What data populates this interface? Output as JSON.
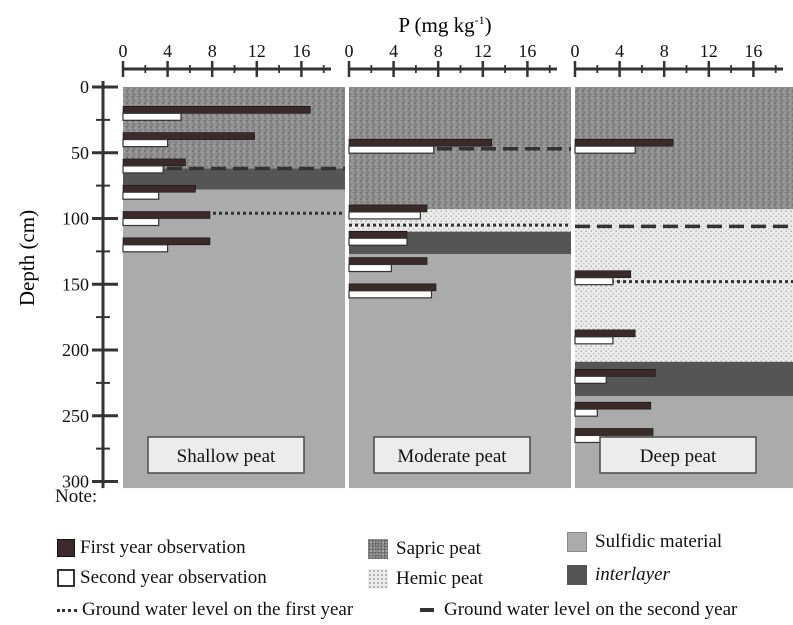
{
  "chart_data": {
    "type": "bar",
    "x_axis_title": "P (mg kg",
    "x_axis_unit_sup": "-1",
    "x_axis_title_close": ")",
    "x_ticks": [
      "0",
      "4",
      "8",
      "12",
      "16"
    ],
    "xlim": [
      0,
      20
    ],
    "y_axis_title": "Depth (cm)",
    "y_ticks": [
      "0",
      "50",
      "100",
      "150",
      "200",
      "250",
      "300"
    ],
    "ylim": [
      0,
      310
    ],
    "series_names": [
      "First year observation",
      "Second year observation"
    ],
    "panels": [
      {
        "label": "Shallow peat",
        "layers": [
          {
            "type": "sapric",
            "from": 0,
            "to": 62
          },
          {
            "type": "interlayer",
            "from": 62,
            "to": 78
          },
          {
            "type": "sulfidic",
            "from": 78,
            "to": 305
          }
        ],
        "gw_first_year": 96,
        "gw_second_year": 62,
        "observations": [
          {
            "depth": 20,
            "first": 16.8,
            "second": 5.2
          },
          {
            "depth": 40,
            "first": 11.8,
            "second": 4.0
          },
          {
            "depth": 60,
            "first": 5.6,
            "second": 3.6
          },
          {
            "depth": 80,
            "first": 6.5,
            "second": 3.2
          },
          {
            "depth": 100,
            "first": 7.8,
            "second": 3.2
          },
          {
            "depth": 120,
            "first": 7.8,
            "second": 4.0
          }
        ]
      },
      {
        "label": "Moderate peat",
        "layers": [
          {
            "type": "sapric",
            "from": 0,
            "to": 93
          },
          {
            "type": "hemic",
            "from": 93,
            "to": 110
          },
          {
            "type": "interlayer",
            "from": 110,
            "to": 127
          },
          {
            "type": "sulfidic",
            "from": 127,
            "to": 305
          }
        ],
        "gw_first_year": 105,
        "gw_second_year": 47,
        "observations": [
          {
            "depth": 45,
            "first": 12.8,
            "second": 7.6
          },
          {
            "depth": 95,
            "first": 7.0,
            "second": 6.4
          },
          {
            "depth": 115,
            "first": 5.2,
            "second": 5.2
          },
          {
            "depth": 135,
            "first": 7.0,
            "second": 3.8
          },
          {
            "depth": 155,
            "first": 7.8,
            "second": 7.4
          }
        ]
      },
      {
        "label": "Deep peat",
        "layers": [
          {
            "type": "sapric",
            "from": 0,
            "to": 93
          },
          {
            "type": "hemic",
            "from": 93,
            "to": 209
          },
          {
            "type": "interlayer",
            "from": 209,
            "to": 235
          },
          {
            "type": "sulfidic",
            "from": 235,
            "to": 305
          }
        ],
        "gw_first_year": 148,
        "gw_second_year": 106,
        "observations": [
          {
            "depth": 45,
            "first": 8.8,
            "second": 5.4
          },
          {
            "depth": 145,
            "first": 5.0,
            "second": 3.4
          },
          {
            "depth": 190,
            "first": 5.4,
            "second": 3.4
          },
          {
            "depth": 220,
            "first": 7.2,
            "second": 2.8
          },
          {
            "depth": 245,
            "first": 6.8,
            "second": 2.0
          },
          {
            "depth": 265,
            "first": 7.0,
            "second": 2.8
          }
        ]
      }
    ]
  },
  "note": {
    "title": "Note:",
    "first_year": "First year observation",
    "second_year": "Second year observation",
    "sapric": "Sapric peat",
    "hemic": "Hemic peat",
    "sulfidic": "Sulfidic material",
    "interlayer": "interlayer",
    "gw_first": "Ground water level on the first year",
    "gw_second": "Ground water level on the second year"
  },
  "colors": {
    "sapric": "#8c8c8c",
    "hemic": "#ececec",
    "sulfidic": "#ababab",
    "interlayer": "#555555",
    "first_year_bar": "#3a2a2a",
    "second_year_bar": "#ffffff",
    "axis": "#333333"
  }
}
